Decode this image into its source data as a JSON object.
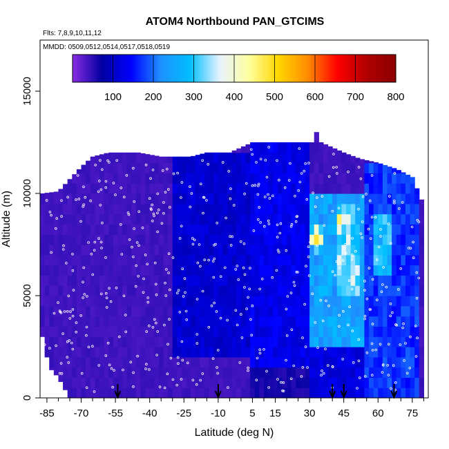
{
  "chart_data": {
    "type": "heatmap",
    "title": "ATOM4 Northbound PAN_GTCIMS",
    "subtitle_flights": "Flts: 7,8,9,10,11,12",
    "subtitle_dates": "MMDD: 0509,0512,0514,0517,0518,0519",
    "xlabel": "Latitude (deg N)",
    "ylabel": "Altitude (m)",
    "xlim": [
      -88,
      82
    ],
    "ylim": [
      0,
      17500
    ],
    "x_ticks": [
      -85,
      -70,
      -55,
      -40,
      -25,
      -10,
      5,
      15,
      30,
      45,
      60,
      75
    ],
    "x_minor_ticks": [
      -80,
      -75,
      -65,
      -60,
      -50,
      -45,
      -35,
      -30,
      -20,
      -15,
      -5,
      0,
      10,
      20,
      25,
      35,
      40,
      50,
      55,
      65,
      70,
      80
    ],
    "y_ticks": [
      0,
      5000,
      10000,
      15000
    ],
    "colorbar": {
      "range": [
        0,
        800
      ],
      "ticks": [
        100,
        200,
        300,
        400,
        500,
        600,
        700,
        800
      ],
      "colors": [
        "#8a2be2",
        "#0000a0",
        "#0000ff",
        "#1e90ff",
        "#00bfff",
        "#e6f2ff",
        "#ffffa0",
        "#ffd700",
        "#ff8c00",
        "#ff0000",
        "#b00000",
        "#8b0000"
      ]
    },
    "coverage_top_altitude_m": [
      [
        -87,
        10000
      ],
      [
        -80,
        10100
      ],
      [
        -70,
        11300
      ],
      [
        -65,
        11800
      ],
      [
        -58,
        12000
      ],
      [
        -45,
        12000
      ],
      [
        -35,
        11800
      ],
      [
        -22,
        11800
      ],
      [
        -15,
        12000
      ],
      [
        -5,
        12000
      ],
      [
        5,
        12500
      ],
      [
        20,
        12500
      ],
      [
        31,
        12500
      ],
      [
        33,
        13000
      ],
      [
        35,
        12500
      ],
      [
        45,
        12000
      ],
      [
        52,
        11700
      ],
      [
        60,
        11500
      ],
      [
        68,
        11200
      ],
      [
        75,
        10800
      ],
      [
        79,
        9700
      ]
    ],
    "coverage_bottom_altitude_m": [
      [
        -87,
        3000
      ],
      [
        -84,
        1500
      ],
      [
        -80,
        1000
      ],
      [
        -75,
        0
      ],
      [
        79,
        0
      ]
    ],
    "concentration_regions_pptv": [
      {
        "lat": [
          -87,
          -30
        ],
        "alt": [
          0,
          12000
        ],
        "value": 40
      },
      {
        "lat": [
          -30,
          5
        ],
        "alt": [
          0,
          1800
        ],
        "value": 40
      },
      {
        "lat": [
          -30,
          5
        ],
        "alt": [
          1800,
          12000
        ],
        "value": 110
      },
      {
        "lat": [
          5,
          30
        ],
        "alt": [
          0,
          1500
        ],
        "value": 60
      },
      {
        "lat": [
          5,
          30
        ],
        "alt": [
          1500,
          12500
        ],
        "value": 130
      },
      {
        "lat": [
          30,
          55
        ],
        "alt": [
          0,
          2500
        ],
        "value": 120
      },
      {
        "lat": [
          30,
          55
        ],
        "alt": [
          2500,
          10000
        ],
        "value": 250
      },
      {
        "lat": [
          42,
          52
        ],
        "alt": [
          5000,
          8500
        ],
        "value": 330
      },
      {
        "lat": [
          55,
          79
        ],
        "alt": [
          0,
          11500
        ],
        "value": 170
      },
      {
        "lat": [
          58,
          66
        ],
        "alt": [
          6000,
          9000
        ],
        "value": 280
      }
    ],
    "hotspots_pptv": [
      {
        "lat": 44,
        "alt": 8700,
        "value": 480
      },
      {
        "lat": 33,
        "alt": 7800,
        "value": 500
      },
      {
        "lat": 48,
        "alt": 8900,
        "value": 420
      }
    ],
    "marked_latitudes": [
      -54,
      -10,
      40,
      45,
      67
    ]
  }
}
